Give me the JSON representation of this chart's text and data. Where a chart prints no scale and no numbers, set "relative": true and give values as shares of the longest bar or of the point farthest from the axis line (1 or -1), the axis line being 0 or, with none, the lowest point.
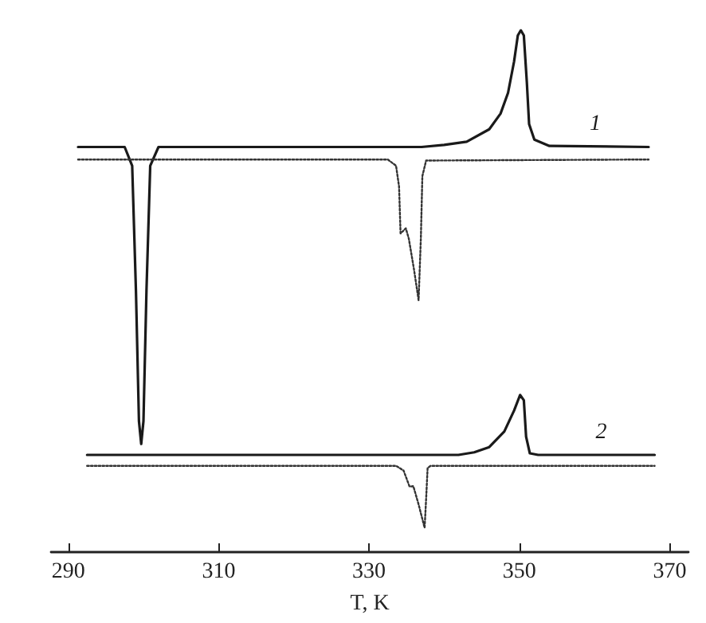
{
  "chart_data": {
    "type": "line",
    "relative": true,
    "xlabel": "T, K",
    "xlim": [
      287.7,
      372.5
    ],
    "xticks": [
      290,
      310,
      330,
      350,
      370
    ],
    "grid": false,
    "legend": false,
    "marker": "none",
    "tick_labels": "x",
    "series": [
      {
        "name": "1",
        "color": "#1a1a1a",
        "line_style": "solid",
        "x": [
          291.3,
          297.5,
          298.5,
          299.0,
          299.4,
          299.7,
          300.0,
          300.4,
          300.9,
          302,
          337,
          340,
          343,
          346,
          347.5,
          348.5,
          349.3,
          349.8,
          350.2,
          350.6,
          351.0,
          351.3,
          352,
          354,
          367.2
        ],
        "values": [
          0.776,
          0.776,
          0.74,
          0.5,
          0.25,
          0.206,
          0.25,
          0.5,
          0.74,
          0.776,
          0.776,
          0.78,
          0.786,
          0.81,
          0.84,
          0.88,
          0.94,
          0.99,
          1,
          0.99,
          0.9,
          0.82,
          0.79,
          0.778,
          0.776
        ]
      },
      {
        "color": "#333333",
        "line_style": "dotted",
        "x": [
          291.3,
          332.5,
          333.6,
          334.0,
          334.2,
          334.9,
          335.3,
          336.0,
          336.6,
          336.9,
          337.1,
          337.6,
          367.2
        ],
        "values": [
          0.752,
          0.752,
          0.74,
          0.7,
          0.61,
          0.62,
          0.6,
          0.54,
          0.482,
          0.6,
          0.72,
          0.75,
          0.752
        ]
      },
      {
        "name": "2",
        "color": "#1a1a1a",
        "line_style": "solid",
        "x": [
          292.5,
          341.9,
          344,
          346,
          348,
          349.3,
          350.1,
          350.6,
          350.9,
          351.4,
          352.5,
          368
        ],
        "values": [
          0.185,
          0.185,
          0.19,
          0.2,
          0.23,
          0.27,
          0.3,
          0.29,
          0.22,
          0.188,
          0.185,
          0.185
        ]
      },
      {
        "color": "#333333",
        "line_style": "dotted",
        "x": [
          292.5,
          333.6,
          334.6,
          335.4,
          335.9,
          336.6,
          337.4,
          337.6,
          337.8,
          338.2,
          368
        ],
        "values": [
          0.164,
          0.164,
          0.155,
          0.124,
          0.125,
          0.09,
          0.045,
          0.1,
          0.16,
          0.164,
          0.164
        ]
      }
    ]
  }
}
